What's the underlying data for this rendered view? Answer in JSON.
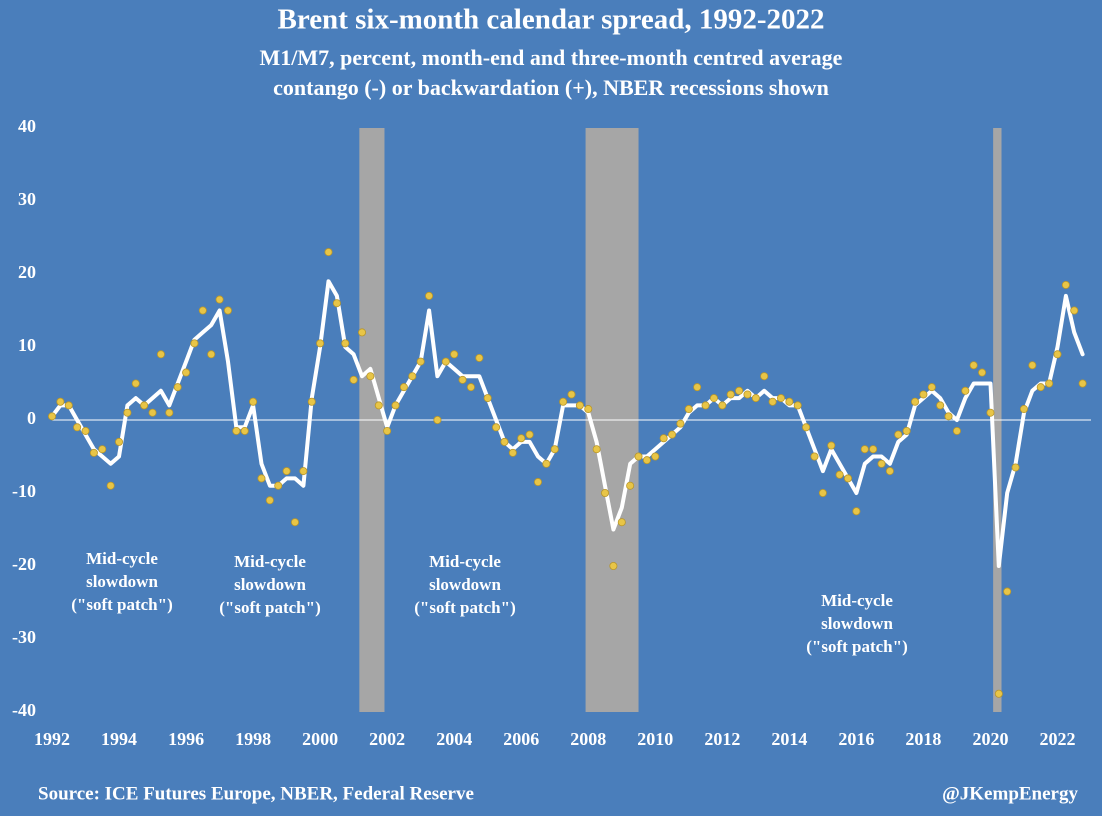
{
  "chart_data": {
    "type": "line",
    "title": "Brent six-month calendar spread, 1992-2022",
    "subtitle": [
      "M1/M7, percent, month-end and three-month centred average",
      "contango (-) or backwardation (+), NBER recessions shown"
    ],
    "source": "Source: ICE Futures Europe, NBER, Federal Reserve",
    "credit": "@JKempEnergy",
    "xlim": [
      1992,
      2023
    ],
    "xticks": [
      1992,
      1994,
      1996,
      1998,
      2000,
      2002,
      2004,
      2006,
      2008,
      2010,
      2012,
      2014,
      2016,
      2018,
      2020,
      2022
    ],
    "ylim": [
      -40,
      40
    ],
    "yticks": [
      -40,
      -30,
      -20,
      -10,
      0,
      10,
      20,
      30,
      40
    ],
    "grid": false,
    "recession_color": "#a6a6a6",
    "recessions": [
      [
        2001.17,
        2001.92
      ],
      [
        2007.92,
        2009.5
      ],
      [
        2020.08,
        2020.33
      ]
    ],
    "x": [
      1992,
      1992.25,
      1992.5,
      1992.75,
      1993,
      1993.25,
      1993.5,
      1993.75,
      1994,
      1994.25,
      1994.5,
      1994.75,
      1995,
      1995.25,
      1995.5,
      1995.75,
      1996,
      1996.25,
      1996.5,
      1996.75,
      1997,
      1997.25,
      1997.5,
      1997.75,
      1998,
      1998.25,
      1998.5,
      1998.75,
      1999,
      1999.25,
      1999.5,
      1999.75,
      2000,
      2000.25,
      2000.5,
      2000.75,
      2001,
      2001.25,
      2001.5,
      2001.75,
      2002,
      2002.25,
      2002.5,
      2002.75,
      2003,
      2003.25,
      2003.5,
      2003.75,
      2004,
      2004.25,
      2004.5,
      2004.75,
      2005,
      2005.25,
      2005.5,
      2005.75,
      2006,
      2006.25,
      2006.5,
      2006.75,
      2007,
      2007.25,
      2007.5,
      2007.75,
      2008,
      2008.25,
      2008.5,
      2008.75,
      2009,
      2009.25,
      2009.5,
      2009.75,
      2010,
      2010.25,
      2010.5,
      2010.75,
      2011,
      2011.25,
      2011.5,
      2011.75,
      2012,
      2012.25,
      2012.5,
      2012.75,
      2013,
      2013.25,
      2013.5,
      2013.75,
      2014,
      2014.25,
      2014.5,
      2014.75,
      2015,
      2015.25,
      2015.5,
      2015.75,
      2016,
      2016.25,
      2016.5,
      2016.75,
      2017,
      2017.25,
      2017.5,
      2017.75,
      2018,
      2018.25,
      2018.5,
      2018.75,
      2019,
      2019.25,
      2019.5,
      2019.75,
      2020,
      2020.25,
      2020.5,
      2020.75,
      2021,
      2021.25,
      2021.5,
      2021.75,
      2022,
      2022.25,
      2022.5,
      2022.75
    ],
    "series": [
      {
        "type": "line",
        "color": "#ffffff",
        "values": [
          0.5,
          2,
          2,
          0,
          -2,
          -4,
          -5,
          -6,
          -5,
          2,
          3,
          2,
          3,
          4,
          2,
          5,
          8,
          11,
          12,
          13,
          15,
          8,
          -1,
          -1,
          2,
          -6,
          -9,
          -9,
          -8,
          -8,
          -9,
          3,
          10,
          19,
          17,
          10,
          9,
          6,
          7,
          3,
          -1,
          2,
          4,
          6,
          8,
          15,
          6,
          8,
          7,
          6,
          6,
          6,
          3,
          0,
          -3,
          -4,
          -3,
          -3,
          -5,
          -6,
          -4,
          2,
          2,
          2,
          1,
          -3,
          -9,
          -15,
          -12,
          -6,
          -5,
          -5,
          -4,
          -3,
          -2,
          -1,
          1,
          2,
          2,
          3,
          2,
          3,
          3,
          4,
          3,
          4,
          3,
          3,
          2,
          2,
          -1,
          -4,
          -7,
          -4,
          -6,
          -8,
          -10,
          -6,
          -5,
          -5,
          -6,
          -3,
          -2,
          2,
          3,
          4,
          3,
          1,
          0,
          3,
          5,
          5,
          5,
          -20,
          -10,
          -6,
          1,
          4,
          5,
          5,
          10,
          17,
          12,
          9
        ]
      },
      {
        "type": "scatter",
        "color": "#e8c547",
        "values": [
          0.5,
          2.5,
          2,
          -1,
          -1.5,
          -4.5,
          -4,
          -9,
          -3,
          1,
          5,
          2,
          1,
          9,
          1,
          4.5,
          6.5,
          10.5,
          15,
          9,
          16.5,
          15,
          -1.5,
          -1.5,
          2.5,
          -8,
          -11,
          -9,
          -7,
          -14,
          -7,
          2.5,
          10.5,
          23,
          16,
          10.5,
          5.5,
          12,
          6,
          2,
          -1.5,
          2,
          4.5,
          6,
          8,
          17,
          0,
          8,
          9,
          5.5,
          4.5,
          8.5,
          3,
          -1,
          -3,
          -4.5,
          -2.5,
          -2,
          -8.5,
          -6,
          -4,
          2.5,
          3.5,
          2,
          1.5,
          -4,
          -10,
          -20,
          -14,
          -9,
          -5,
          -5.5,
          -5,
          -2.5,
          -2,
          -0.5,
          1.5,
          4.5,
          2,
          3,
          2,
          3.5,
          4,
          3.5,
          3,
          6,
          2.5,
          3,
          2.5,
          2,
          -1,
          -5,
          -10,
          -3.5,
          -7.5,
          -8,
          -12.5,
          -4,
          -4,
          -6,
          -7,
          -2,
          -1.5,
          2.5,
          3.5,
          4.5,
          2,
          0.5,
          -1.5,
          4,
          7.5,
          6.5,
          1,
          -37.5,
          -23.5,
          -6.5,
          1.5,
          7.5,
          4.5,
          5,
          9,
          18.5,
          15,
          5
        ]
      }
    ],
    "annotations": [
      [
        "Mid-cycle",
        "slowdown",
        "(\"soft patch\")"
      ],
      [
        "Mid-cycle",
        "slowdown",
        "(\"soft patch\")"
      ],
      [
        "Mid-cycle",
        "slowdown",
        "(\"soft patch\")"
      ],
      [
        "Mid-cycle",
        "slowdown",
        "(\"soft patch\")"
      ]
    ]
  }
}
